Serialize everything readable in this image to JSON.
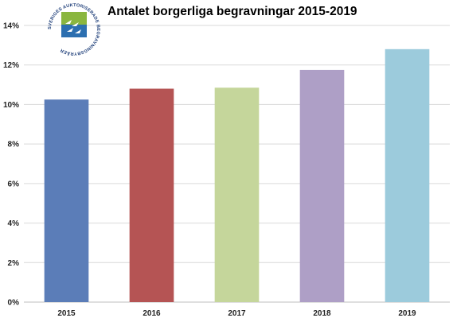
{
  "chart_data": {
    "type": "bar",
    "title": "Antalet borgerliga begravningar 2015-2019",
    "categories": [
      "2015",
      "2016",
      "2017",
      "2018",
      "2019"
    ],
    "values": [
      10.25,
      10.8,
      10.85,
      11.75,
      12.8
    ],
    "colors": [
      "#5b7db8",
      "#b55454",
      "#c5d69b",
      "#ae9fc6",
      "#9ccbdc"
    ],
    "ylim": [
      0,
      14
    ],
    "yticks": [
      0,
      2,
      4,
      6,
      8,
      10,
      12,
      14
    ],
    "ytick_suffix": "%",
    "grid": true,
    "xlabel": "",
    "ylabel": ""
  },
  "logo": {
    "text": "SVERIGES AUKTORISERADE BEGRAVNINGSBYRÅER",
    "colors": {
      "top": "#8ab63f",
      "bottom": "#2c6fb0",
      "ring_text": "#1f3f7a"
    }
  }
}
